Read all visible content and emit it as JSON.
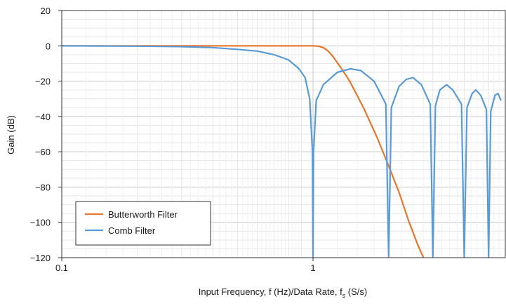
{
  "chart_data": {
    "type": "line",
    "xscale": "log",
    "xlim": [
      0.1,
      5.6
    ],
    "ylim": [
      -120,
      20
    ],
    "grid": true,
    "legend_position": "bottom-left",
    "x_ticks": [
      {
        "value": 0.1,
        "label": "0.1"
      },
      {
        "value": 1,
        "label": "1"
      }
    ],
    "y_ticks": [
      {
        "value": 20,
        "label": "20"
      },
      {
        "value": 0,
        "label": "0"
      },
      {
        "value": -20,
        "label": "−20"
      },
      {
        "value": -40,
        "label": "−40"
      },
      {
        "value": -60,
        "label": "−60"
      },
      {
        "value": -80,
        "label": "−80"
      },
      {
        "value": -100,
        "label": "−100"
      },
      {
        "value": -120,
        "label": "−120"
      }
    ],
    "xlabel_main": "Input Frequency, f (Hz)/Data Rate, f",
    "xlabel_sub": "s",
    "xlabel_tail": " (S/s)",
    "ylabel": "Gain (dB)",
    "series": [
      {
        "name": "Butterworth Filter",
        "color": "#e8762c",
        "points": [
          [
            0.1,
            0
          ],
          [
            0.5,
            0
          ],
          [
            0.9,
            0
          ],
          [
            1.0,
            0
          ],
          [
            1.05,
            -0.2
          ],
          [
            1.1,
            -1
          ],
          [
            1.15,
            -3
          ],
          [
            1.2,
            -6
          ],
          [
            1.3,
            -13
          ],
          [
            1.4,
            -20
          ],
          [
            1.6,
            -36
          ],
          [
            1.8,
            -52
          ],
          [
            2.0,
            -68
          ],
          [
            2.2,
            -83
          ],
          [
            2.4,
            -99
          ],
          [
            2.6,
            -112
          ],
          [
            2.75,
            -120
          ]
        ]
      },
      {
        "name": "Comb Filter",
        "color": "#5b9bd5",
        "points": [
          [
            0.1,
            0
          ],
          [
            0.2,
            -0.2
          ],
          [
            0.3,
            -0.5
          ],
          [
            0.4,
            -1
          ],
          [
            0.5,
            -2
          ],
          [
            0.6,
            -3
          ],
          [
            0.7,
            -5
          ],
          [
            0.8,
            -8
          ],
          [
            0.88,
            -13
          ],
          [
            0.93,
            -18
          ],
          [
            0.97,
            -30
          ],
          [
            0.995,
            -60
          ],
          [
            1.0,
            -120
          ],
          [
            1.005,
            -60
          ],
          [
            1.03,
            -31
          ],
          [
            1.1,
            -22
          ],
          [
            1.25,
            -15
          ],
          [
            1.41,
            -13
          ],
          [
            1.55,
            -14
          ],
          [
            1.75,
            -20
          ],
          [
            1.95,
            -33
          ],
          [
            2.0,
            -120
          ],
          [
            2.05,
            -35
          ],
          [
            2.2,
            -23
          ],
          [
            2.35,
            -19
          ],
          [
            2.5,
            -18
          ],
          [
            2.7,
            -22
          ],
          [
            2.93,
            -33
          ],
          [
            3.0,
            -120
          ],
          [
            3.07,
            -34
          ],
          [
            3.2,
            -25
          ],
          [
            3.4,
            -22
          ],
          [
            3.6,
            -25
          ],
          [
            3.9,
            -33
          ],
          [
            4.0,
            -120
          ],
          [
            4.1,
            -35
          ],
          [
            4.3,
            -27
          ],
          [
            4.45,
            -25
          ],
          [
            4.65,
            -28
          ],
          [
            4.9,
            -36
          ],
          [
            5.0,
            -120
          ],
          [
            5.1,
            -37
          ],
          [
            5.3,
            -28
          ],
          [
            5.45,
            -27
          ],
          [
            5.6,
            -31
          ]
        ]
      }
    ]
  }
}
